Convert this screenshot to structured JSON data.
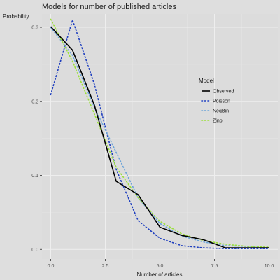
{
  "chart_data": {
    "type": "line",
    "title": "Models for number of published articles",
    "xlabel": "Number of articles",
    "ylabel": "Probability",
    "xlim": [
      -0.4,
      10.4
    ],
    "ylim": [
      -0.013,
      0.318
    ],
    "xticks": [
      0.0,
      2.5,
      5.0,
      7.5,
      10.0
    ],
    "xtick_labels": [
      "0.0",
      "2.5",
      "5.0",
      "7.5",
      "10.0"
    ],
    "yticks": [
      0.0,
      0.1,
      0.2,
      0.3
    ],
    "ytick_labels": [
      "0.0",
      "0.1",
      "0.2",
      "0.3"
    ],
    "grid": true,
    "legend": {
      "title": "Model",
      "position": "right"
    },
    "x": [
      0,
      1,
      2,
      3,
      4,
      5,
      6,
      7,
      8,
      9,
      10
    ],
    "series": [
      {
        "name": "Observed",
        "color": "#000000",
        "style": "solid",
        "values": [
          0.301,
          0.269,
          0.195,
          0.092,
          0.074,
          0.03,
          0.019,
          0.013,
          0.002,
          0.002,
          0.002
        ]
      },
      {
        "name": "Poisson",
        "color": "#1f3fbf",
        "style": "dotted",
        "values": [
          0.209,
          0.31,
          0.223,
          0.108,
          0.039,
          0.015,
          0.005,
          0.002,
          0.001,
          0.001,
          0.001
        ]
      },
      {
        "name": "NegBin",
        "color": "#6aa3d8",
        "style": "dotted",
        "values": [
          0.3,
          0.262,
          0.192,
          0.131,
          0.07,
          0.035,
          0.018,
          0.01,
          0.005,
          0.004,
          0.002
        ]
      },
      {
        "name": "Zinb",
        "color": "#9be03a",
        "style": "dotted",
        "values": [
          0.311,
          0.254,
          0.183,
          0.111,
          0.07,
          0.038,
          0.021,
          0.012,
          0.007,
          0.004,
          0.003
        ]
      }
    ]
  }
}
